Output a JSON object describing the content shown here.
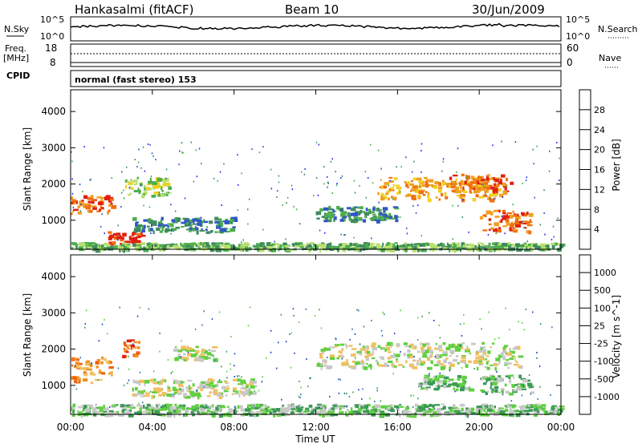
{
  "header": {
    "station": "Hankasalmi (fitACF)",
    "beam": "Beam 10",
    "date": "30/Jun/2009"
  },
  "noise_panel": {
    "left_label": "N.Sky",
    "right_label": "N.Search",
    "left_ticks": [
      "10^5",
      "10^0"
    ],
    "right_ticks": [
      "10^5",
      "10^0"
    ]
  },
  "freq_panel": {
    "left_label_line1": "Freq.",
    "left_label_line2": "[MHz]",
    "left_ticks": [
      "18",
      "8"
    ],
    "right_label": "Nave",
    "right_ticks": [
      "60",
      "0"
    ]
  },
  "cpid": {
    "label": "CPID",
    "value": "normal (fast stereo) 153"
  },
  "axes": {
    "ylabel": "Slant Range [km]",
    "xlabel": "Time UT",
    "yticks": [
      "4000",
      "3000",
      "2000",
      "1000"
    ],
    "xticks": [
      "00:00",
      "04:00",
      "08:00",
      "12:00",
      "16:00",
      "20:00",
      "00:00"
    ]
  },
  "chart_data": [
    {
      "type": "heatmap",
      "panel": "power",
      "colorbar_title": "Power [dB]",
      "colorbar_ticks": [
        "28",
        "24",
        "20",
        "16",
        "12",
        "8",
        "4"
      ],
      "colorbar_colors": [
        "#2d2dff",
        "#3055c8",
        "#3f8a5f",
        "#4cae4c",
        "#b8e06c",
        "#f0d020",
        "#f0a020",
        "#f07010",
        "#e02010"
      ],
      "xlim_hours": [
        0,
        24
      ],
      "ylim_km": [
        200,
        4600
      ],
      "bands": [
        {
          "t0": 0.0,
          "t1": 2.0,
          "r0": 1200,
          "r1": 1700,
          "level": 7
        },
        {
          "t0": 1.8,
          "t1": 3.5,
          "r0": 350,
          "r1": 700,
          "level": 8
        },
        {
          "t0": 2.6,
          "t1": 4.8,
          "r0": 1700,
          "r1": 2200,
          "level": 4
        },
        {
          "t0": 3.0,
          "t1": 8.0,
          "r0": 700,
          "r1": 1100,
          "level": 2
        },
        {
          "t0": 12.0,
          "t1": 16.0,
          "r0": 1000,
          "r1": 1400,
          "level": 2
        },
        {
          "t0": 15.0,
          "t1": 21.0,
          "r0": 1600,
          "r1": 2200,
          "level": 6
        },
        {
          "t0": 18.5,
          "t1": 21.5,
          "r0": 1800,
          "r1": 2300,
          "level": 7
        },
        {
          "t0": 20.0,
          "t1": 22.5,
          "r0": 700,
          "r1": 1300,
          "level": 7
        },
        {
          "t0": 0.0,
          "t1": 24.0,
          "r0": 200,
          "r1": 400,
          "level": 3
        }
      ]
    },
    {
      "type": "heatmap",
      "panel": "velocity",
      "colorbar_title": "Velocity [m s^-1]",
      "colorbar_ticks": [
        "1000",
        "500",
        "100",
        "25",
        "-25",
        "-100",
        "-500",
        "-1000"
      ],
      "colorbar_colors": [
        "#2040c8",
        "#3070b0",
        "#3a9a55",
        "#60d040",
        "#c8c8c8",
        "#f0c060",
        "#f09020",
        "#f06010",
        "#e02010"
      ],
      "xlim_hours": [
        0,
        24
      ],
      "ylim_km": [
        200,
        4600
      ],
      "bands": [
        {
          "t0": 0.0,
          "t1": 2.0,
          "r0": 1100,
          "r1": 1800,
          "level": 6
        },
        {
          "t0": 2.5,
          "t1": 3.3,
          "r0": 1800,
          "r1": 2300,
          "level": 7
        },
        {
          "t0": 3.0,
          "t1": 9.0,
          "r0": 700,
          "r1": 1200,
          "level": 4
        },
        {
          "t0": 5.0,
          "t1": 7.0,
          "r0": 1700,
          "r1": 2100,
          "level": 4
        },
        {
          "t0": 12.0,
          "t1": 22.0,
          "r0": 1500,
          "r1": 2200,
          "level": 4
        },
        {
          "t0": 17.0,
          "t1": 19.5,
          "r0": 900,
          "r1": 1300,
          "level": 3
        },
        {
          "t0": 20.0,
          "t1": 22.5,
          "r0": 800,
          "r1": 1300,
          "level": 3
        },
        {
          "t0": 0.0,
          "t1": 24.0,
          "r0": 200,
          "r1": 500,
          "level": 3
        }
      ]
    }
  ]
}
